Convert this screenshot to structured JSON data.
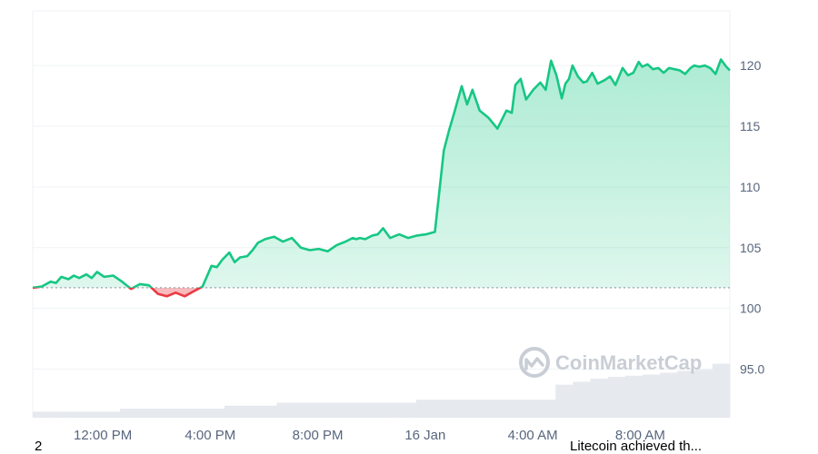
{
  "chart_data": {
    "type": "area",
    "y_ticks": [
      "120",
      "115",
      "110",
      "105",
      "100",
      "95.0"
    ],
    "x_ticks": [
      "12:00 PM",
      "4:00 PM",
      "8:00 PM",
      "16 Jan",
      "4:00 AM",
      "8:00 AM"
    ],
    "ylim": [
      91,
      124.5
    ],
    "baseline": 101.7,
    "grid": true,
    "colors": {
      "up": "#16c784",
      "down": "#ea3943",
      "grid": "#eff2f5",
      "volume": "#e6e9ee"
    },
    "series": [
      {
        "x": [
          0,
          0.5,
          1,
          1.3,
          1.6,
          2,
          2.3,
          2.6,
          3,
          3.3,
          3.6,
          4,
          4.5,
          5,
          5.5,
          6,
          6.5,
          7,
          7.5,
          8,
          8.5,
          9,
          9.5,
          10,
          10.3,
          10.6,
          11,
          11.3,
          11.6,
          12,
          12.3,
          12.6,
          13,
          13.5,
          14,
          14.5,
          15,
          15.5,
          16,
          16.5,
          17,
          17.5,
          17.9,
          18.1,
          18.3,
          18.6,
          19,
          19.3,
          19.6,
          20,
          20.5,
          21,
          21.5,
          22,
          22.5,
          23,
          23.3,
          23.6,
          24,
          24.3,
          24.6,
          25,
          25.5,
          26,
          26.5,
          26.8,
          27,
          27.3,
          27.6,
          28,
          28.4,
          28.7,
          29,
          29.3,
          29.6,
          29.8,
          30,
          30.2,
          30.5,
          30.8,
          31,
          31.3,
          31.6,
          32,
          32.3,
          32.6,
          33,
          33.3,
          33.6,
          33.9,
          34.1,
          34.4,
          34.7,
          35,
          35.3,
          35.6,
          35.9,
          36.2,
          36.5,
          36.8,
          37,
          37.3,
          37.6,
          37.9,
          38.2,
          38.5,
          38.8,
          39
        ],
        "y": [
          101.7,
          101.8,
          102.2,
          102.1,
          102.6,
          102.4,
          102.7,
          102.5,
          102.8,
          102.5,
          103.0,
          102.6,
          102.7,
          102.2,
          101.6,
          102.0,
          101.9,
          101.2,
          101.0,
          101.3,
          101.0,
          101.4,
          101.8,
          103.5,
          103.4,
          104.0,
          104.6,
          103.8,
          104.2,
          104.3,
          104.8,
          105.4,
          105.7,
          105.9,
          105.5,
          105.8,
          105.0,
          104.8,
          104.9,
          104.7,
          105.2,
          105.5,
          105.8,
          105.7,
          105.8,
          105.7,
          106.0,
          106.1,
          106.6,
          105.8,
          106.1,
          105.8,
          106.0,
          106.1,
          106.3,
          113.0,
          114.7,
          116.2,
          118.3,
          116.8,
          118.0,
          116.3,
          115.7,
          114.8,
          116.3,
          116.1,
          118.4,
          118.9,
          117.2,
          118.0,
          118.6,
          118.0,
          120.4,
          119.2,
          117.3,
          118.5,
          118.9,
          120.0,
          119.1,
          118.6,
          118.7,
          119.4,
          118.5,
          118.8,
          119.1,
          118.4,
          119.8,
          119.2,
          119.4,
          120.3,
          119.9,
          120.1,
          119.7,
          119.8,
          119.4,
          119.8,
          119.7,
          119.6,
          119.3,
          119.8,
          120.0,
          119.9,
          120.0,
          119.8,
          119.3,
          120.5,
          119.9,
          119.6
        ]
      }
    ],
    "volume": [
      0.1,
      0.1,
      0.1,
      0.1,
      0.1,
      0.15,
      0.15,
      0.15,
      0.15,
      0.15,
      0.15,
      0.2,
      0.2,
      0.2,
      0.25,
      0.25,
      0.25,
      0.25,
      0.25,
      0.25,
      0.25,
      0.25,
      0.3,
      0.3,
      0.3,
      0.3,
      0.3,
      0.3,
      0.3,
      0.3,
      0.55,
      0.6,
      0.65,
      0.68,
      0.7,
      0.72,
      0.75,
      0.78,
      0.8,
      0.9
    ]
  },
  "watermark": {
    "text": "CoinMarketCap",
    "icon": "coinmarketcap-logo"
  },
  "footer": {
    "left": "2",
    "right": "Litecoin achieved th..."
  }
}
